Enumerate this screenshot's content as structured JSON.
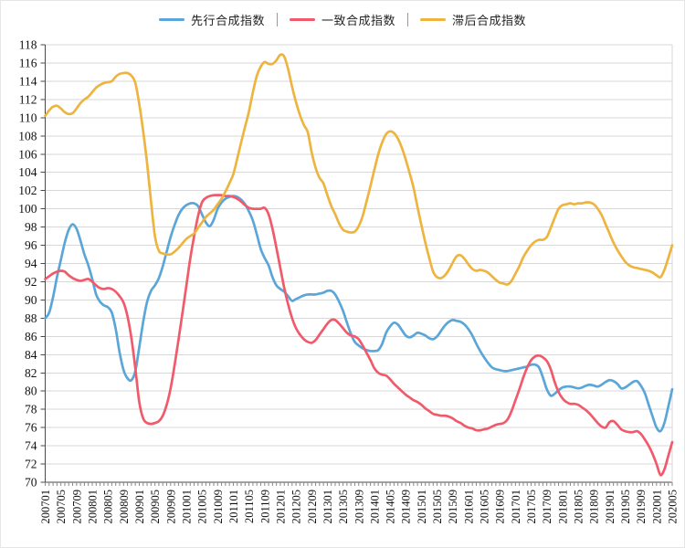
{
  "chart_data": {
    "type": "line",
    "title": "",
    "legend_position": "top",
    "legend_separator": "|",
    "grid": true,
    "x_axis": {
      "points": 161,
      "label_every": 4,
      "tick_labels": [
        "200701",
        "200705",
        "200709",
        "200801",
        "200805",
        "200809",
        "200901",
        "200905",
        "200909",
        "201001",
        "201005",
        "201009",
        "201101",
        "201105",
        "201109",
        "201201",
        "201205",
        "201209",
        "201301",
        "201305",
        "201309",
        "201401",
        "201405",
        "201409",
        "201501",
        "201505",
        "201509",
        "201601",
        "201605",
        "201609",
        "201701",
        "201705",
        "201709",
        "201801",
        "201805",
        "201809",
        "201901",
        "201905",
        "201909",
        "202001",
        "202005"
      ]
    },
    "y_axis": {
      "min": 70,
      "max": 118,
      "step": 2
    },
    "series": [
      {
        "name": "先行合成指数",
        "color": "#5BA6D8",
        "values": [
          88.0,
          88.6,
          90.3,
          92.5,
          94.4,
          96.3,
          97.7,
          98.3,
          97.8,
          96.5,
          95.0,
          93.8,
          92.3,
          90.6,
          89.8,
          89.4,
          89.2,
          88.6,
          86.8,
          84.2,
          82.3,
          81.4,
          81.2,
          82.2,
          84.8,
          87.6,
          89.8,
          91.0,
          91.6,
          92.4,
          93.7,
          95.3,
          96.9,
          98.2,
          99.3,
          100.0,
          100.4,
          100.6,
          100.6,
          100.3,
          99.4,
          98.5,
          98.1,
          98.8,
          100.0,
          100.7,
          101.1,
          101.3,
          101.4,
          101.3,
          101.0,
          100.5,
          99.7,
          98.7,
          97.2,
          95.6,
          94.6,
          93.8,
          92.5,
          91.6,
          91.2,
          90.9,
          90.4,
          89.9,
          90.1,
          90.3,
          90.5,
          90.6,
          90.6,
          90.6,
          90.7,
          90.8,
          91.0,
          91.0,
          90.6,
          89.8,
          88.8,
          87.5,
          86.3,
          85.4,
          85.0,
          84.7,
          84.5,
          84.4,
          84.4,
          84.5,
          85.2,
          86.4,
          87.1,
          87.5,
          87.3,
          86.7,
          86.1,
          85.9,
          86.1,
          86.4,
          86.3,
          86.1,
          85.8,
          85.7,
          86.0,
          86.6,
          87.2,
          87.6,
          87.8,
          87.7,
          87.6,
          87.3,
          86.8,
          86.1,
          85.2,
          84.4,
          83.7,
          83.1,
          82.6,
          82.4,
          82.3,
          82.2,
          82.2,
          82.3,
          82.4,
          82.5,
          82.6,
          82.7,
          82.9,
          82.9,
          82.6,
          81.5,
          80.2,
          79.5,
          79.7,
          80.1,
          80.4,
          80.5,
          80.5,
          80.4,
          80.3,
          80.4,
          80.6,
          80.7,
          80.6,
          80.5,
          80.7,
          81.0,
          81.2,
          81.1,
          80.8,
          80.3,
          80.4,
          80.7,
          81.0,
          81.1,
          80.6,
          79.8,
          78.5,
          77.2,
          76.0,
          75.6,
          76.5,
          78.3,
          80.2
        ]
      },
      {
        "name": "一致合成指数",
        "color": "#F05A6B",
        "values": [
          92.3,
          92.6,
          92.9,
          93.1,
          93.2,
          93.1,
          92.7,
          92.4,
          92.2,
          92.1,
          92.2,
          92.3,
          92.0,
          91.6,
          91.3,
          91.2,
          91.3,
          91.2,
          90.9,
          90.4,
          89.7,
          88.2,
          85.8,
          82.5,
          78.8,
          77.0,
          76.5,
          76.4,
          76.5,
          76.7,
          77.3,
          78.5,
          80.3,
          82.8,
          85.6,
          88.5,
          91.5,
          94.5,
          97.0,
          99.2,
          100.7,
          101.2,
          101.4,
          101.5,
          101.5,
          101.5,
          101.4,
          101.4,
          101.3,
          101.1,
          100.8,
          100.4,
          100.1,
          100.0,
          100.0,
          100.0,
          100.1,
          99.4,
          97.8,
          95.7,
          93.5,
          91.3,
          89.5,
          88.0,
          86.9,
          86.2,
          85.7,
          85.4,
          85.3,
          85.6,
          86.2,
          86.8,
          87.4,
          87.8,
          87.8,
          87.4,
          86.9,
          86.4,
          86.1,
          86.0,
          85.7,
          85.0,
          84.2,
          83.4,
          82.5,
          82.0,
          81.8,
          81.7,
          81.3,
          80.8,
          80.4,
          80.0,
          79.6,
          79.3,
          79.0,
          78.8,
          78.5,
          78.1,
          77.8,
          77.5,
          77.4,
          77.3,
          77.3,
          77.2,
          77.0,
          76.7,
          76.5,
          76.2,
          76.0,
          75.9,
          75.7,
          75.7,
          75.8,
          75.9,
          76.1,
          76.3,
          76.4,
          76.5,
          76.9,
          77.8,
          79.0,
          80.2,
          81.5,
          82.6,
          83.4,
          83.8,
          83.9,
          83.7,
          83.3,
          82.4,
          81.0,
          79.9,
          79.2,
          78.8,
          78.6,
          78.6,
          78.5,
          78.2,
          77.9,
          77.5,
          77.0,
          76.5,
          76.1,
          76.0,
          76.6,
          76.7,
          76.3,
          75.8,
          75.6,
          75.5,
          75.5,
          75.6,
          75.3,
          74.7,
          74.0,
          73.1,
          72.0,
          70.8,
          71.4,
          72.9,
          74.4
        ]
      },
      {
        "name": "滞后合成指数",
        "color": "#EDB440",
        "values": [
          110.2,
          110.8,
          111.2,
          111.3,
          111.0,
          110.6,
          110.4,
          110.5,
          111.0,
          111.6,
          112.0,
          112.3,
          112.8,
          113.3,
          113.6,
          113.8,
          113.9,
          114.0,
          114.5,
          114.8,
          114.9,
          114.9,
          114.6,
          113.8,
          111.5,
          108.5,
          105.0,
          100.8,
          97.0,
          95.4,
          95.1,
          95.0,
          95.0,
          95.3,
          95.7,
          96.2,
          96.7,
          97.0,
          97.3,
          97.9,
          98.5,
          99.1,
          99.5,
          99.9,
          100.5,
          101.1,
          101.9,
          102.8,
          103.8,
          105.5,
          107.3,
          109.0,
          110.7,
          112.8,
          114.6,
          115.6,
          116.1,
          115.9,
          115.9,
          116.3,
          116.9,
          116.7,
          115.3,
          113.4,
          111.7,
          110.3,
          109.2,
          108.4,
          106.2,
          104.5,
          103.4,
          102.8,
          101.5,
          100.3,
          99.4,
          98.4,
          97.7,
          97.5,
          97.4,
          97.5,
          98.1,
          99.2,
          100.8,
          102.5,
          104.3,
          106.0,
          107.3,
          108.2,
          108.5,
          108.3,
          107.7,
          106.7,
          105.4,
          103.9,
          102.3,
          100.2,
          98.2,
          96.3,
          94.6,
          93.1,
          92.5,
          92.4,
          92.7,
          93.3,
          94.1,
          94.8,
          94.9,
          94.5,
          93.9,
          93.4,
          93.2,
          93.3,
          93.2,
          93.0,
          92.6,
          92.2,
          91.9,
          91.8,
          91.7,
          92.1,
          92.9,
          93.7,
          94.7,
          95.4,
          96.0,
          96.4,
          96.6,
          96.6,
          96.9,
          97.9,
          99.0,
          100.0,
          100.4,
          100.5,
          100.6,
          100.5,
          100.6,
          100.6,
          100.7,
          100.7,
          100.5,
          100.0,
          99.3,
          98.3,
          97.3,
          96.3,
          95.5,
          94.8,
          94.2,
          93.8,
          93.6,
          93.5,
          93.4,
          93.3,
          93.2,
          93.0,
          92.7,
          92.5,
          93.3,
          94.6,
          96.0
        ]
      }
    ]
  },
  "colors": {
    "grid": "#d7d7d7",
    "axis": "#4a4a4a",
    "tick": "#8a8a8a",
    "text": "#111111",
    "background": "#ffffff"
  }
}
